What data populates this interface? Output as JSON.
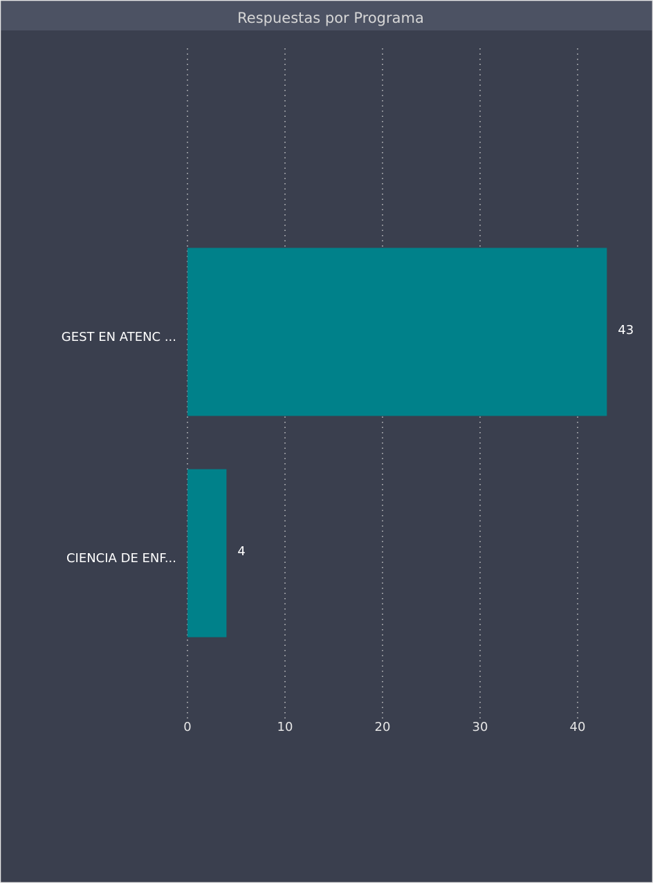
{
  "chart_data": {
    "type": "bar",
    "orientation": "horizontal",
    "title": "Respuestas por Programa",
    "categories": [
      "GEST EN ATENC ...",
      "CIENCIA DE ENF..."
    ],
    "values": [
      43,
      4
    ],
    "color": "#00818a",
    "xlim": [
      0,
      45
    ],
    "xticks": [
      0,
      10,
      20,
      30,
      40
    ],
    "grid": true
  }
}
